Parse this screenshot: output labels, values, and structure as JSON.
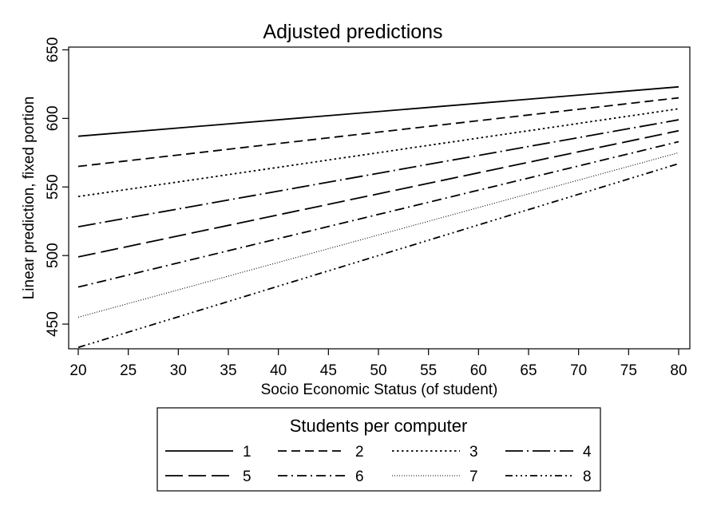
{
  "chart_data": {
    "type": "line",
    "title": "Adjusted predictions",
    "xlabel": "Socio Economic Status (of student)",
    "ylabel": "Linear prediction, fixed portion",
    "xlim": [
      20,
      80
    ],
    "ylim": [
      432,
      652
    ],
    "x_ticks": [
      20,
      25,
      30,
      35,
      40,
      45,
      50,
      55,
      60,
      65,
      70,
      75,
      80
    ],
    "y_ticks": [
      450,
      500,
      550,
      600,
      650
    ],
    "grid": false,
    "legend": {
      "title": "Students per computer",
      "placement": "bottom"
    },
    "x": [
      20,
      80
    ],
    "series": [
      {
        "name": "1",
        "values": [
          587,
          623
        ],
        "style": "solid"
      },
      {
        "name": "2",
        "values": [
          565,
          615
        ],
        "style": "dash"
      },
      {
        "name": "3",
        "values": [
          543,
          607
        ],
        "style": "dot"
      },
      {
        "name": "4",
        "values": [
          521,
          599
        ],
        "style": "longdash-dot"
      },
      {
        "name": "5",
        "values": [
          499,
          591
        ],
        "style": "longdash"
      },
      {
        "name": "6",
        "values": [
          477,
          583
        ],
        "style": "dash-dot"
      },
      {
        "name": "7",
        "values": [
          455,
          575
        ],
        "style": "shortdot"
      },
      {
        "name": "8",
        "values": [
          433,
          567
        ],
        "style": "dash-3dot"
      }
    ],
    "colors": {
      "line": "#000000",
      "background": "#ffffff",
      "frame": "#000000"
    }
  }
}
